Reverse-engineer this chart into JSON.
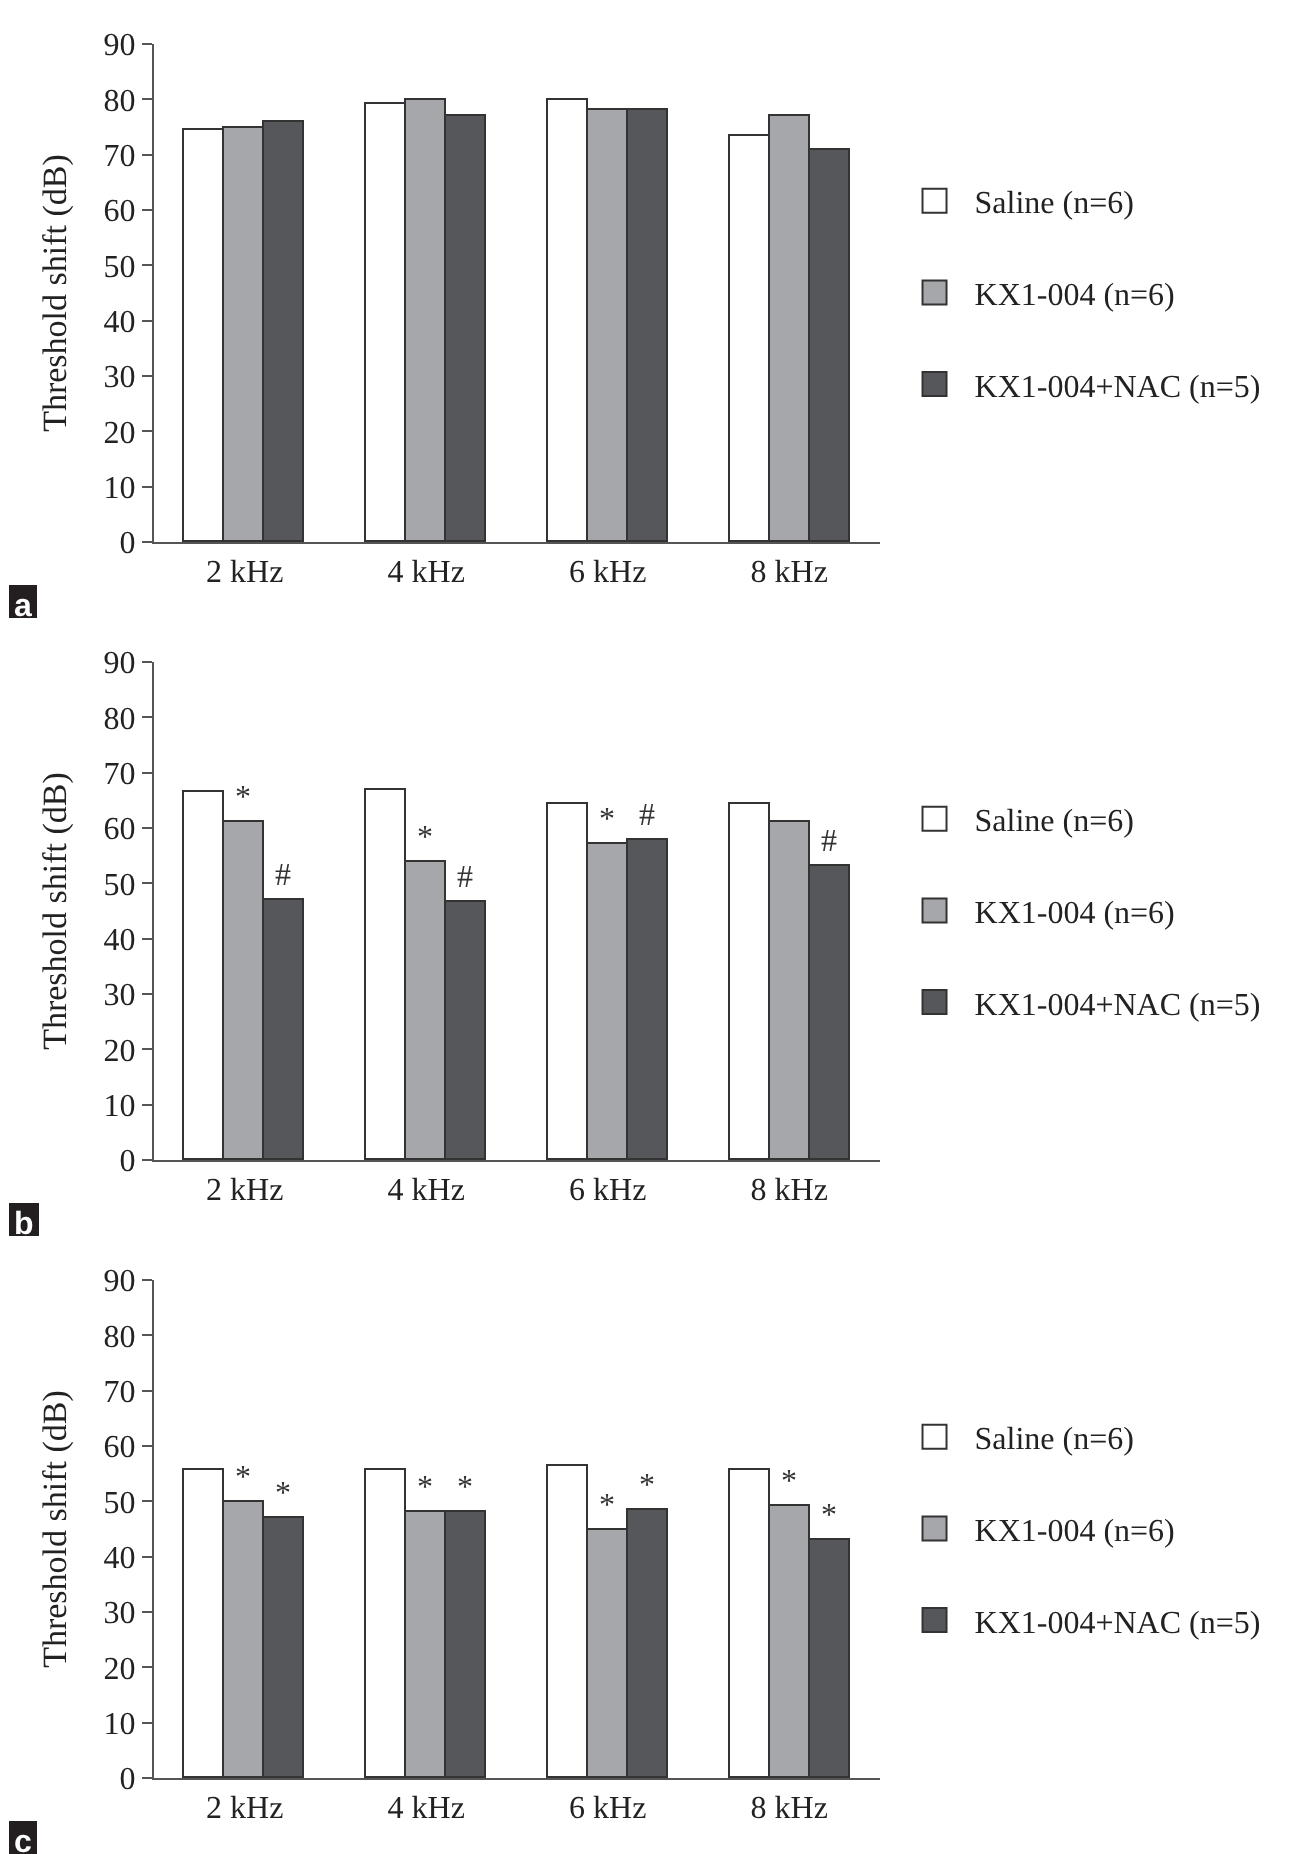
{
  "chart_data": [
    {
      "type": "bar",
      "ylabel": "Threshold shift (dB)",
      "categories": [
        "2 kHz",
        "4 kHz",
        "6 kHz",
        "8 kHz"
      ],
      "ylim": [
        0,
        90
      ],
      "yticks": [
        0,
        10,
        20,
        30,
        40,
        50,
        60,
        70,
        80,
        90
      ],
      "grid": false,
      "legend": "right",
      "annotations": [
        "a"
      ],
      "series": [
        {
          "name": "Saline (n=6)",
          "color": "#ffffff",
          "values": [
            74.5,
            79,
            80,
            73.5
          ]
        },
        {
          "name": "KX1-004 (n=6)",
          "color": "#a6a7aa",
          "values": [
            75,
            80,
            78,
            77
          ]
        },
        {
          "name": "KX1-004+NAC (n=5)",
          "color": "#55575a",
          "values": [
            76,
            77,
            78,
            71
          ]
        }
      ]
    },
    {
      "type": "bar",
      "ylabel": "Threshold shift (dB)",
      "categories": [
        "2 kHz",
        "4 kHz",
        "6 kHz",
        "8 kHz"
      ],
      "ylim": [
        0,
        90
      ],
      "yticks": [
        0,
        10,
        20,
        30,
        40,
        50,
        60,
        70,
        80,
        90
      ],
      "grid": false,
      "legend": "right",
      "annotations": [
        "b"
      ],
      "series": [
        {
          "name": "Saline (n=6)",
          "color": "#ffffff",
          "values": [
            66.5,
            67,
            64.5,
            64.5
          ]
        },
        {
          "name": "KX1-004 (n=6)",
          "color": "#a6a7aa",
          "values": [
            61,
            54,
            57,
            61
          ],
          "value_labels": [
            "*",
            "*",
            "*",
            null
          ]
        },
        {
          "name": "KX1-004+NAC (n=5)",
          "color": "#55575a",
          "values": [
            47,
            46.5,
            58,
            53
          ],
          "value_labels": [
            "#",
            "#",
            "#",
            "#"
          ]
        }
      ]
    },
    {
      "type": "bar",
      "ylabel": "Threshold shift (dB)",
      "categories": [
        "2 kHz",
        "4 kHz",
        "6 kHz",
        "8 kHz"
      ],
      "ylim": [
        0,
        90
      ],
      "yticks": [
        0,
        10,
        20,
        30,
        40,
        50,
        60,
        70,
        80,
        90
      ],
      "grid": false,
      "legend": "right",
      "annotations": [
        "c"
      ],
      "series": [
        {
          "name": "Saline (n=6)",
          "color": "#ffffff",
          "values": [
            55.5,
            55.5,
            56.5,
            55.5
          ]
        },
        {
          "name": "KX1-004 (n=6)",
          "color": "#a6a7aa",
          "values": [
            50,
            48,
            45,
            49
          ],
          "value_labels": [
            "*",
            "*",
            "*",
            "*"
          ]
        },
        {
          "name": "KX1-004+NAC (n=5)",
          "color": "#55575a",
          "values": [
            47,
            48,
            48.5,
            43
          ],
          "value_labels": [
            "*",
            "*",
            "*",
            "*"
          ]
        }
      ]
    }
  ]
}
